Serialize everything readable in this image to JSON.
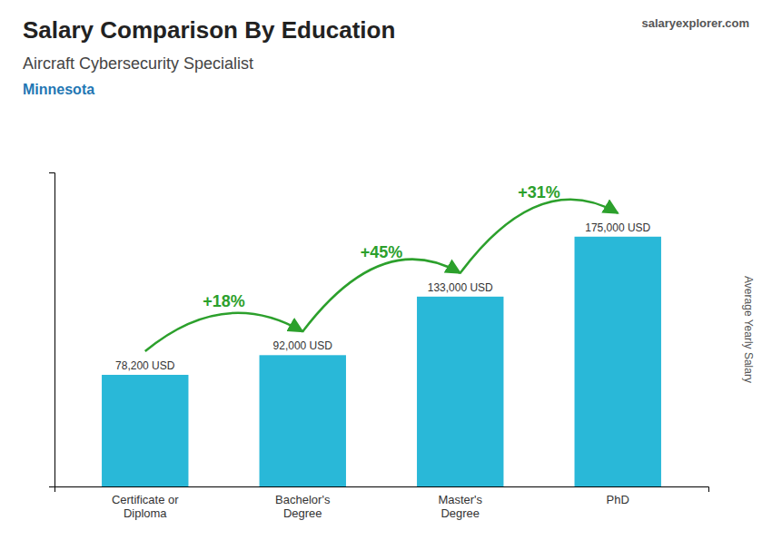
{
  "chart_data": {
    "type": "bar",
    "title": "Salary Comparison By Education",
    "subtitle": "Aircraft Cybersecurity Specialist",
    "location": "Minnesota",
    "brand": "salaryexplorer.com",
    "categories": [
      "Certificate or\nDiploma",
      "Bachelor's\nDegree",
      "Master's\nDegree",
      "PhD"
    ],
    "values": [
      78200,
      92000,
      133000,
      175000
    ],
    "value_labels": [
      "78,200 USD",
      "92,000 USD",
      "133,000 USD",
      "175,000 USD"
    ],
    "data_labels": true,
    "annotations": [
      "+18%",
      "+45%",
      "+31%"
    ],
    "color": "#29b8d8",
    "ylabel": "Average Yearly Salary",
    "ylim": [
      0,
      220000
    ],
    "tick_labels": "x",
    "grid": false
  }
}
